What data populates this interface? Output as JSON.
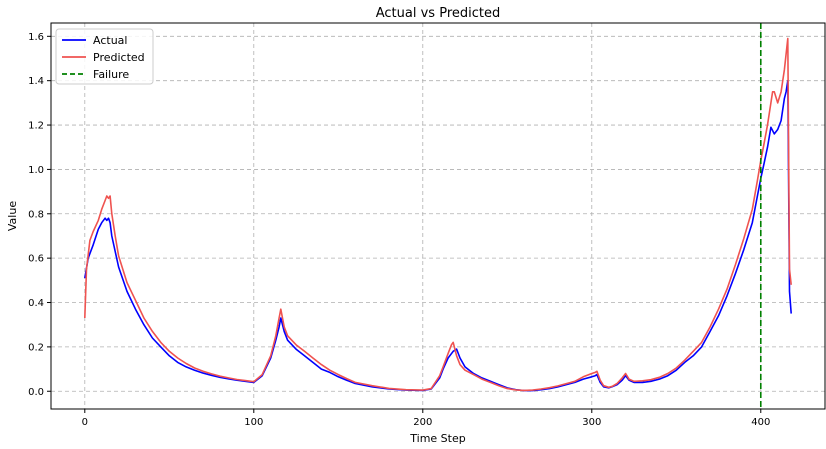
{
  "chart_data": {
    "type": "line",
    "title": "Actual vs Predicted",
    "xlabel": "Time Step",
    "ylabel": "Value",
    "xlim": [
      -20,
      438
    ],
    "ylim": [
      -0.08,
      1.66
    ],
    "xticks": [
      0,
      100,
      200,
      300,
      400
    ],
    "yticks": [
      0.0,
      0.2,
      0.4,
      0.6,
      0.8,
      1.0,
      1.2,
      1.4,
      1.6
    ],
    "xtick_labels": [
      "0",
      "100",
      "200",
      "300",
      "400"
    ],
    "ytick_labels": [
      "0.0",
      "0.2",
      "0.4",
      "0.6",
      "0.8",
      "1.0",
      "1.2",
      "1.4",
      "1.6"
    ],
    "grid": true,
    "legend_position": "top-left",
    "series": [
      {
        "name": "Actual",
        "color": "#0000ff",
        "x": [
          0,
          2,
          5,
          8,
          10,
          12,
          13,
          14,
          15,
          16,
          18,
          20,
          25,
          30,
          35,
          40,
          45,
          50,
          55,
          60,
          65,
          70,
          75,
          80,
          85,
          90,
          95,
          100,
          105,
          110,
          113,
          115,
          116,
          118,
          120,
          125,
          130,
          135,
          140,
          145,
          150,
          155,
          160,
          170,
          180,
          190,
          200,
          205,
          210,
          212,
          215,
          218,
          220,
          222,
          225,
          230,
          235,
          240,
          245,
          250,
          255,
          260,
          265,
          270,
          275,
          280,
          290,
          295,
          300,
          302,
          303,
          305,
          307,
          310,
          312,
          315,
          318,
          320,
          322,
          325,
          330,
          335,
          340,
          345,
          350,
          355,
          360,
          365,
          370,
          375,
          380,
          385,
          390,
          395,
          398,
          400,
          402,
          404,
          406,
          408,
          410,
          412,
          414,
          415,
          416,
          417,
          418
        ],
        "y": [
          0.51,
          0.6,
          0.66,
          0.73,
          0.76,
          0.78,
          0.77,
          0.78,
          0.76,
          0.7,
          0.63,
          0.56,
          0.45,
          0.37,
          0.3,
          0.24,
          0.2,
          0.16,
          0.13,
          0.11,
          0.095,
          0.082,
          0.072,
          0.063,
          0.056,
          0.05,
          0.045,
          0.04,
          0.07,
          0.15,
          0.23,
          0.29,
          0.33,
          0.27,
          0.23,
          0.19,
          0.16,
          0.13,
          0.1,
          0.085,
          0.065,
          0.05,
          0.035,
          0.02,
          0.01,
          0.005,
          0.004,
          0.01,
          0.06,
          0.1,
          0.15,
          0.18,
          0.19,
          0.15,
          0.11,
          0.08,
          0.06,
          0.045,
          0.03,
          0.015,
          0.007,
          0.003,
          0.003,
          0.007,
          0.012,
          0.02,
          0.04,
          0.055,
          0.065,
          0.07,
          0.075,
          0.04,
          0.02,
          0.015,
          0.02,
          0.03,
          0.05,
          0.07,
          0.05,
          0.04,
          0.04,
          0.045,
          0.055,
          0.07,
          0.095,
          0.13,
          0.16,
          0.2,
          0.27,
          0.34,
          0.43,
          0.53,
          0.64,
          0.76,
          0.88,
          0.96,
          1.03,
          1.1,
          1.19,
          1.16,
          1.18,
          1.22,
          1.32,
          1.35,
          1.4,
          0.45,
          0.35
        ]
      },
      {
        "name": "Predicted",
        "color": "#ef5350",
        "x": [
          0,
          1,
          3,
          5,
          8,
          10,
          12,
          13,
          14,
          15,
          16,
          18,
          20,
          25,
          30,
          35,
          40,
          45,
          50,
          55,
          60,
          65,
          70,
          75,
          80,
          85,
          90,
          95,
          100,
          105,
          110,
          113,
          115,
          116,
          118,
          120,
          125,
          130,
          135,
          140,
          145,
          150,
          155,
          160,
          170,
          180,
          190,
          200,
          205,
          210,
          212,
          215,
          217,
          218,
          220,
          222,
          225,
          230,
          235,
          240,
          245,
          250,
          255,
          260,
          265,
          270,
          275,
          280,
          290,
          295,
          300,
          302,
          303,
          305,
          307,
          310,
          312,
          315,
          318,
          320,
          322,
          325,
          330,
          335,
          340,
          345,
          350,
          355,
          360,
          365,
          370,
          375,
          380,
          385,
          390,
          395,
          398,
          400,
          402,
          404,
          406,
          407,
          408,
          410,
          412,
          414,
          416,
          417,
          418
        ],
        "y": [
          0.33,
          0.55,
          0.68,
          0.72,
          0.77,
          0.82,
          0.86,
          0.88,
          0.87,
          0.88,
          0.8,
          0.7,
          0.61,
          0.49,
          0.41,
          0.33,
          0.27,
          0.22,
          0.18,
          0.15,
          0.125,
          0.105,
          0.09,
          0.078,
          0.068,
          0.06,
          0.053,
          0.048,
          0.043,
          0.075,
          0.16,
          0.25,
          0.33,
          0.37,
          0.29,
          0.25,
          0.21,
          0.18,
          0.15,
          0.12,
          0.095,
          0.075,
          0.057,
          0.04,
          0.025,
          0.013,
          0.007,
          0.005,
          0.012,
          0.07,
          0.11,
          0.17,
          0.21,
          0.22,
          0.16,
          0.12,
          0.095,
          0.075,
          0.055,
          0.04,
          0.025,
          0.012,
          0.006,
          0.004,
          0.005,
          0.01,
          0.016,
          0.024,
          0.045,
          0.065,
          0.08,
          0.085,
          0.09,
          0.05,
          0.025,
          0.018,
          0.022,
          0.035,
          0.06,
          0.08,
          0.055,
          0.045,
          0.047,
          0.052,
          0.063,
          0.08,
          0.105,
          0.14,
          0.18,
          0.22,
          0.29,
          0.37,
          0.46,
          0.57,
          0.69,
          0.82,
          0.95,
          1.04,
          1.12,
          1.2,
          1.3,
          1.35,
          1.35,
          1.3,
          1.35,
          1.45,
          1.59,
          0.55,
          0.48
        ]
      }
    ],
    "annotations": [
      {
        "name": "Failure",
        "type": "vline",
        "x": 400,
        "color": "#008000",
        "style": "dashed"
      }
    ]
  }
}
